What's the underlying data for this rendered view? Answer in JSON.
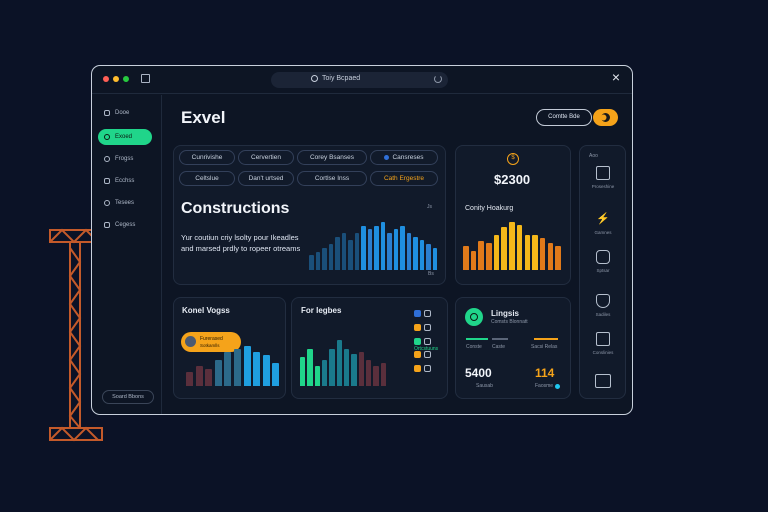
{
  "colors": {
    "accent_green": "#20d58a",
    "accent_orange": "#f5a31a",
    "bar_blue": "#1f8fe0",
    "bar_dark": "#1a4f7a",
    "background": "#0b1226"
  },
  "window": {
    "search": {
      "text": "Toiy Bcpaed",
      "icon": "search-icon"
    },
    "close_icon": "close-icon"
  },
  "sidebar": {
    "items": [
      {
        "label": "Dooe",
        "icon": "home-icon"
      },
      {
        "label": "Exoed",
        "icon": "circle-icon",
        "active": true
      },
      {
        "label": "Frogss",
        "icon": "search-icon"
      },
      {
        "label": "Ecchss",
        "icon": "folder-icon"
      },
      {
        "label": "Tesees",
        "icon": "settings-icon"
      },
      {
        "label": "Cegess",
        "icon": "chat-icon"
      }
    ],
    "bottom_button": "Soard Bbons"
  },
  "header": {
    "title": "Exvel",
    "create_button": "Comtte Bde",
    "theme_icon": "moon-icon"
  },
  "chips": [
    "Cunrivishe",
    "Cervertien",
    "Corey Bsanses",
    "Cansreses",
    "Celtslue",
    "Dan't urtsed",
    "Cortlse Inss",
    "Cath Ergestre"
  ],
  "hero": {
    "title": "Constructions",
    "corner_label": "Js",
    "body_line1": "Yur coutiun criy lsolty pour Ikeadles",
    "body_line2": "and marsed prdly to ropeer otreams",
    "footer_label": "Bs",
    "chart_data": {
      "type": "bar",
      "values": [
        4,
        5,
        6,
        7,
        9,
        10,
        8,
        10,
        12,
        11,
        12,
        13,
        10,
        11,
        12,
        10,
        9,
        8,
        7,
        6
      ]
    }
  },
  "balance": {
    "coin_icon": "coin-icon",
    "value": "$2300",
    "title": "Conity Hoakurg",
    "chart_data": {
      "type": "bar",
      "values": [
        9,
        7,
        11,
        10,
        13,
        16,
        18,
        17,
        13,
        13,
        12,
        10,
        9
      ]
    }
  },
  "right_panel": {
    "top_label": "Aoo",
    "items": [
      {
        "label": "Proseshine",
        "icon": "document-icon"
      },
      {
        "label": "Gamnes",
        "icon": "bolt-icon"
      },
      {
        "label": "Sptsar",
        "icon": "box-icon"
      },
      {
        "label": "Sadiles",
        "icon": "shield-icon"
      },
      {
        "label": "Conslinies",
        "icon": "edit-icon"
      },
      {
        "label": "",
        "icon": "folder-icon"
      }
    ]
  },
  "card_left": {
    "title": "Konel Vogss",
    "pill_label": "Furerased",
    "pill_sub": "Sotkamlls",
    "chart_data": {
      "type": "bar",
      "values": [
        5,
        7,
        6,
        9,
        12,
        13,
        14,
        12,
        11,
        8
      ]
    }
  },
  "card_mid": {
    "title": "For Iegbes",
    "legend": [
      {
        "label": "",
        "color": "#2f6fd8"
      },
      {
        "label": "",
        "color": "#f5a31a"
      },
      {
        "label": "Ortcstuuns",
        "color": "#20d58a"
      },
      {
        "label": "",
        "color": "#f5a31a"
      },
      {
        "label": "",
        "color": "#f5a31a"
      }
    ],
    "chart_data": {
      "type": "bar",
      "values": [
        10,
        13,
        7,
        9,
        13,
        16,
        13,
        11,
        12,
        9,
        7,
        8
      ]
    }
  },
  "card_right": {
    "title": "Lingsis",
    "subtitle": "Comsts Blonnatt",
    "left_label": "Conste",
    "mid_label": "Caste",
    "right_label": "Sacsi Relas",
    "value_left": "5400",
    "value_left_label": "Sausab",
    "value_right": "114",
    "value_right_label": "Faosme"
  }
}
